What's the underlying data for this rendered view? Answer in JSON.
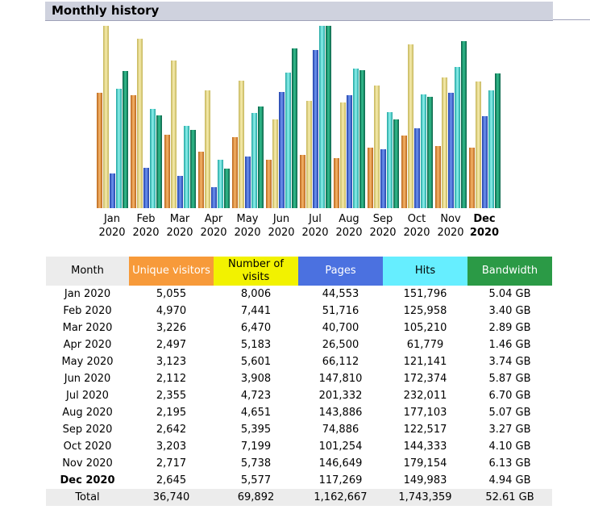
{
  "section_title": "Monthly history",
  "table": {
    "headers": {
      "month": "Month",
      "unique_visitors": "Unique visitors",
      "visits": "Number of visits",
      "pages": "Pages",
      "hits": "Hits",
      "bandwidth": "Bandwidth"
    },
    "rows": [
      {
        "month": "Jan 2020",
        "unique": "5,055",
        "visits": "8,006",
        "pages": "44,553",
        "hits": "151,796",
        "bandwidth": "5.04 GB"
      },
      {
        "month": "Feb 2020",
        "unique": "4,970",
        "visits": "7,441",
        "pages": "51,716",
        "hits": "125,958",
        "bandwidth": "3.40 GB"
      },
      {
        "month": "Mar 2020",
        "unique": "3,226",
        "visits": "6,470",
        "pages": "40,700",
        "hits": "105,210",
        "bandwidth": "2.89 GB"
      },
      {
        "month": "Apr 2020",
        "unique": "2,497",
        "visits": "5,183",
        "pages": "26,500",
        "hits": "61,779",
        "bandwidth": "1.46 GB"
      },
      {
        "month": "May 2020",
        "unique": "3,123",
        "visits": "5,601",
        "pages": "66,112",
        "hits": "121,141",
        "bandwidth": "3.74 GB"
      },
      {
        "month": "Jun 2020",
        "unique": "2,112",
        "visits": "3,908",
        "pages": "147,810",
        "hits": "172,374",
        "bandwidth": "5.87 GB"
      },
      {
        "month": "Jul 2020",
        "unique": "2,355",
        "visits": "4,723",
        "pages": "201,332",
        "hits": "232,011",
        "bandwidth": "6.70 GB"
      },
      {
        "month": "Aug 2020",
        "unique": "2,195",
        "visits": "4,651",
        "pages": "143,886",
        "hits": "177,103",
        "bandwidth": "5.07 GB"
      },
      {
        "month": "Sep 2020",
        "unique": "2,642",
        "visits": "5,395",
        "pages": "74,886",
        "hits": "122,517",
        "bandwidth": "3.27 GB"
      },
      {
        "month": "Oct 2020",
        "unique": "3,203",
        "visits": "7,199",
        "pages": "101,254",
        "hits": "144,333",
        "bandwidth": "4.10 GB"
      },
      {
        "month": "Nov 2020",
        "unique": "2,717",
        "visits": "5,738",
        "pages": "146,649",
        "hits": "179,154",
        "bandwidth": "6.13 GB"
      },
      {
        "month": "Dec 2020",
        "unique": "2,645",
        "visits": "5,577",
        "pages": "117,269",
        "hits": "149,983",
        "bandwidth": "4.94 GB",
        "current": true
      }
    ],
    "total": {
      "label": "Total",
      "unique": "36,740",
      "visits": "69,892",
      "pages": "1,162,667",
      "hits": "1,743,359",
      "bandwidth": "52.61 GB"
    }
  },
  "chart_data": {
    "type": "bar",
    "categories": [
      {
        "month": "Jan",
        "year": "2020"
      },
      {
        "month": "Feb",
        "year": "2020"
      },
      {
        "month": "Mar",
        "year": "2020"
      },
      {
        "month": "Apr",
        "year": "2020"
      },
      {
        "month": "May",
        "year": "2020"
      },
      {
        "month": "Jun",
        "year": "2020"
      },
      {
        "month": "Jul",
        "year": "2020"
      },
      {
        "month": "Aug",
        "year": "2020"
      },
      {
        "month": "Sep",
        "year": "2020"
      },
      {
        "month": "Oct",
        "year": "2020"
      },
      {
        "month": "Nov",
        "year": "2020"
      },
      {
        "month": "Dec",
        "year": "2020",
        "current": true
      }
    ],
    "series": [
      {
        "key": "unique",
        "color": "#e8902a",
        "values": [
          5055,
          4970,
          3226,
          2497,
          3123,
          2112,
          2355,
          2195,
          2642,
          3203,
          2717,
          2645
        ]
      },
      {
        "key": "visits",
        "color": "#e9dc86",
        "values": [
          8006,
          7441,
          6470,
          5183,
          5601,
          3908,
          4723,
          4651,
          5395,
          7199,
          5738,
          5577
        ]
      },
      {
        "key": "pages",
        "color": "#3c66d6",
        "values": [
          44553,
          51716,
          40700,
          26500,
          66112,
          147810,
          201332,
          143886,
          74886,
          101254,
          146649,
          117269
        ]
      },
      {
        "key": "hits",
        "color": "#3ed6d0",
        "values": [
          151796,
          125958,
          105210,
          61779,
          121141,
          172374,
          232011,
          177103,
          122517,
          144333,
          179154,
          149983
        ]
      },
      {
        "key": "bandwidth",
        "color": "#15906a",
        "values": [
          5.04,
          3.4,
          2.89,
          1.46,
          3.74,
          5.87,
          6.7,
          5.07,
          3.27,
          4.1,
          6.13,
          4.94
        ]
      }
    ],
    "scale_groups": [
      [
        "unique",
        "visits"
      ],
      [
        "pages",
        "hits"
      ],
      [
        "bandwidth"
      ]
    ],
    "grid": false,
    "legend": "none"
  }
}
